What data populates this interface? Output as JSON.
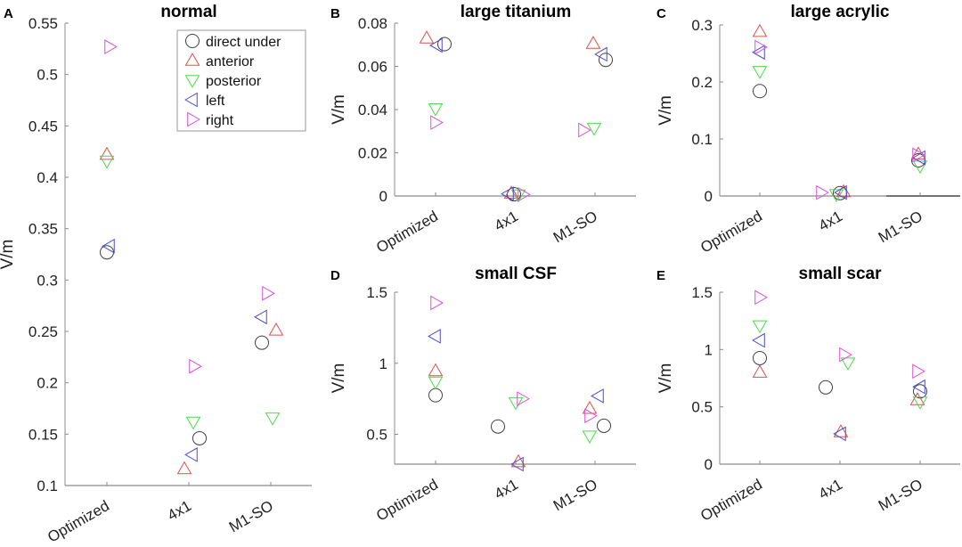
{
  "figure": {
    "legend": {
      "placement": "top-right of panel A",
      "entries": [
        {
          "key": "direct",
          "label": "direct under",
          "marker": "circle",
          "color": "#404040"
        },
        {
          "key": "anterior",
          "label": "anterior",
          "marker": "triangle-up",
          "color": "#d9524f"
        },
        {
          "key": "posterior",
          "label": "posterior",
          "marker": "triangle-down",
          "color": "#4fd94f"
        },
        {
          "key": "left",
          "label": "left",
          "marker": "triangle-left",
          "color": "#4a4ad0"
        },
        {
          "key": "right",
          "label": "right",
          "marker": "triangle-right",
          "color": "#d94fd9"
        }
      ]
    }
  },
  "chart_data": [
    {
      "panel": "A",
      "type": "scatter",
      "title": "normal",
      "xlabel": "",
      "ylabel": "V/m",
      "categories": [
        "Optimized",
        "4x1",
        "M1-SO"
      ],
      "ylim": [
        0.1,
        0.55
      ],
      "yticks": [
        "0.1",
        "0.15",
        "0.2",
        "0.25",
        "0.3",
        "0.35",
        "0.4",
        "0.45",
        "0.5",
        "0.55"
      ],
      "ytick_values": [
        0.1,
        0.15,
        0.2,
        0.25,
        0.3,
        0.35,
        0.4,
        0.45,
        0.5,
        0.55
      ],
      "grid": false,
      "legend": "top-right",
      "series": [
        {
          "name": "direct under",
          "key": "direct",
          "values": [
            0.327,
            0.146,
            0.239
          ]
        },
        {
          "name": "anterior",
          "key": "anterior",
          "values": [
            0.422,
            0.116,
            0.251
          ]
        },
        {
          "name": "posterior",
          "key": "posterior",
          "values": [
            0.416,
            0.162,
            0.166
          ]
        },
        {
          "name": "left",
          "key": "left",
          "values": [
            0.333,
            0.13,
            0.264
          ]
        },
        {
          "name": "right",
          "key": "right",
          "values": [
            0.527,
            0.216,
            0.287
          ]
        }
      ]
    },
    {
      "panel": "B",
      "type": "scatter",
      "title": "large titanium",
      "xlabel": "",
      "ylabel": "V/m",
      "categories": [
        "Optimized",
        "4x1",
        "M1-SO"
      ],
      "ylim": [
        0,
        0.08
      ],
      "yticks": [
        "0",
        "0.02",
        "0.04",
        "0.06",
        "0.08"
      ],
      "ytick_values": [
        0,
        0.02,
        0.04,
        0.06,
        0.08
      ],
      "grid": false,
      "legend": "none",
      "series": [
        {
          "name": "direct under",
          "key": "direct",
          "values": [
            0.0703,
            0.0008,
            0.063
          ]
        },
        {
          "name": "anterior",
          "key": "anterior",
          "values": [
            0.073,
            0.0012,
            0.0705
          ]
        },
        {
          "name": "posterior",
          "key": "posterior",
          "values": [
            0.0405,
            0.0006,
            0.0315
          ]
        },
        {
          "name": "left",
          "key": "left",
          "values": [
            0.0697,
            0.001,
            0.0656
          ]
        },
        {
          "name": "right",
          "key": "right",
          "values": [
            0.034,
            0.0007,
            0.0305
          ]
        }
      ]
    },
    {
      "panel": "C",
      "type": "scatter",
      "title": "large acrylic",
      "xlabel": "",
      "ylabel": "V/m",
      "categories": [
        "Optimized",
        "4x1",
        "M1-SO"
      ],
      "ylim": [
        0,
        0.3
      ],
      "yticks": [
        "0",
        "0.1",
        "0.2",
        "0.3"
      ],
      "ytick_values": [
        0,
        0.1,
        0.2,
        0.3
      ],
      "grid": false,
      "legend": "none",
      "series": [
        {
          "name": "direct under",
          "key": "direct",
          "values": [
            0.184,
            0.005,
            0.0625
          ]
        },
        {
          "name": "anterior",
          "key": "anterior",
          "values": [
            0.288,
            0.007,
            0.073
          ]
        },
        {
          "name": "posterior",
          "key": "posterior",
          "values": [
            0.219,
            0.003,
            0.053
          ]
        },
        {
          "name": "left",
          "key": "left",
          "values": [
            0.252,
            0.006,
            0.067
          ]
        },
        {
          "name": "right",
          "key": "right",
          "values": [
            0.261,
            0.006,
            0.072
          ]
        }
      ]
    },
    {
      "panel": "D",
      "type": "scatter",
      "title": "small CSF",
      "xlabel": "",
      "ylabel": "V/m",
      "categories": [
        "Optimized",
        "4x1",
        "M1-SO"
      ],
      "ylim": [
        0.29,
        1.5
      ],
      "yticks": [
        "0.5",
        "1",
        "1.5"
      ],
      "ytick_values": [
        0.5,
        1,
        1.5
      ],
      "grid": false,
      "legend": "none",
      "series": [
        {
          "name": "direct under",
          "key": "direct",
          "values": [
            0.775,
            0.555,
            0.56
          ]
        },
        {
          "name": "anterior",
          "key": "anterior",
          "values": [
            0.945,
            0.305,
            0.68
          ]
        },
        {
          "name": "posterior",
          "key": "posterior",
          "values": [
            0.87,
            0.725,
            0.49
          ]
        },
        {
          "name": "left",
          "key": "left",
          "values": [
            1.19,
            0.29,
            0.77
          ]
        },
        {
          "name": "right",
          "key": "right",
          "values": [
            1.425,
            0.75,
            0.63
          ]
        }
      ]
    },
    {
      "panel": "E",
      "type": "scatter",
      "title": "small scar",
      "xlabel": "",
      "ylabel": "V/m",
      "categories": [
        "Optimized",
        "4x1",
        "M1-SO"
      ],
      "ylim": [
        0,
        1.5
      ],
      "yticks": [
        "0",
        "0.5",
        "1",
        "1.5"
      ],
      "ytick_values": [
        0,
        0.5,
        1,
        1.5
      ],
      "grid": false,
      "legend": "none",
      "series": [
        {
          "name": "direct under",
          "key": "direct",
          "values": [
            0.925,
            0.67,
            0.635
          ]
        },
        {
          "name": "anterior",
          "key": "anterior",
          "values": [
            0.8,
            0.28,
            0.56
          ]
        },
        {
          "name": "posterior",
          "key": "posterior",
          "values": [
            1.21,
            0.885,
            0.545
          ]
        },
        {
          "name": "left",
          "key": "left",
          "values": [
            1.08,
            0.265,
            0.675
          ]
        },
        {
          "name": "right",
          "key": "right",
          "values": [
            1.455,
            0.955,
            0.81
          ]
        }
      ]
    }
  ]
}
